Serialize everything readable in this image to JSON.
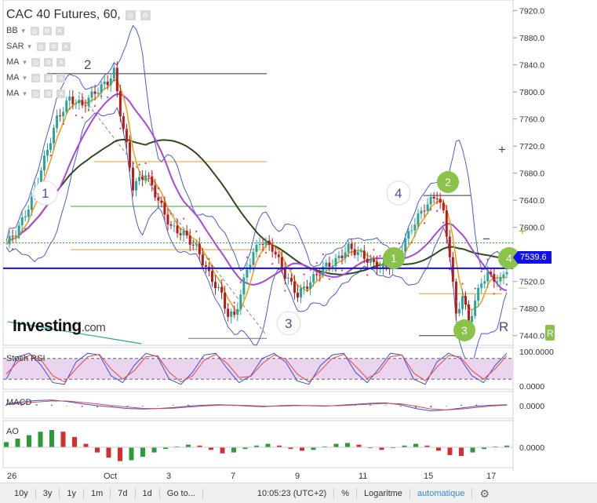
{
  "title": "CAC 40 Futures, 60,",
  "indicators": [
    "BB",
    "SAR",
    "MA",
    "MA",
    "MA"
  ],
  "logo": {
    "main": "Investing",
    "suffix": ".com"
  },
  "current_price": "7539.6",
  "colors": {
    "up": "#26a69a",
    "down": "#b71c1c",
    "sar": "#e53935",
    "bb": "#4a5bd4",
    "ma_fast": "#f39c12",
    "ma_mid": "#ab47d8",
    "ma_slow": "#2e4a1e",
    "price_line": "#1010ee",
    "wave_badge": "#8bc34a"
  },
  "icons": [
    "dropdown-arrow-icon",
    "eye-icon",
    "gear-icon",
    "close-icon",
    "plus-icon",
    "minus-icon",
    "settings-gear-icon"
  ],
  "toolbar": {
    "ranges": [
      "10y",
      "3y",
      "1y",
      "1m",
      "7d",
      "1d"
    ],
    "goto": "Go to...",
    "time": "10:05:23 (UTC+2)",
    "percent": "%",
    "log": "Logaritme",
    "auto": "automatique"
  },
  "chart_data": [
    {
      "type": "candlestick",
      "title": "CAC 40 Futures, 60,",
      "price_axis": {
        "range": [
          7420,
          7930
        ],
        "ticks": [
          "7920.0",
          "7880.0",
          "7840.0",
          "7800.0",
          "7760.0",
          "7720.0",
          "7680.0",
          "7640.0",
          "7600.0",
          "7560.0",
          "7520.0",
          "7480.0",
          "7440.0"
        ]
      },
      "x_ticks": [
        "26",
        "Oct",
        "3",
        "7",
        "9",
        "11",
        "15",
        "17"
      ],
      "close_path": [
        [
          0,
          7575
        ],
        [
          4,
          7600
        ],
        [
          8,
          7640
        ],
        [
          12,
          7700
        ],
        [
          16,
          7760
        ],
        [
          20,
          7790
        ],
        [
          24,
          7780
        ],
        [
          28,
          7800
        ],
        [
          32,
          7815
        ],
        [
          34,
          7830
        ],
        [
          36,
          7770
        ],
        [
          38,
          7720
        ],
        [
          40,
          7660
        ],
        [
          44,
          7680
        ],
        [
          48,
          7640
        ],
        [
          52,
          7600
        ],
        [
          56,
          7590
        ],
        [
          60,
          7570
        ],
        [
          64,
          7530
        ],
        [
          68,
          7500
        ],
        [
          70,
          7470
        ],
        [
          72,
          7470
        ],
        [
          74,
          7500
        ],
        [
          76,
          7540
        ],
        [
          80,
          7580
        ],
        [
          84,
          7570
        ],
        [
          88,
          7530
        ],
        [
          92,
          7500
        ],
        [
          96,
          7520
        ],
        [
          100,
          7540
        ],
        [
          104,
          7550
        ],
        [
          108,
          7570
        ],
        [
          112,
          7560
        ],
        [
          116,
          7545
        ],
        [
          120,
          7540
        ],
        [
          124,
          7560
        ],
        [
          128,
          7600
        ],
        [
          132,
          7630
        ],
        [
          136,
          7648
        ],
        [
          138,
          7620
        ],
        [
          140,
          7560
        ],
        [
          142,
          7470
        ],
        [
          144,
          7500
        ],
        [
          146,
          7460
        ],
        [
          148,
          7490
        ],
        [
          150,
          7520
        ],
        [
          152,
          7530
        ],
        [
          156,
          7520
        ],
        [
          158,
          7539.6
        ]
      ],
      "current_price": 7539.6,
      "wave_labels": [
        {
          "label": "1",
          "style": "circle"
        },
        {
          "label": "2",
          "style": "plain"
        },
        {
          "label": "3",
          "style": "circle"
        },
        {
          "label": "4",
          "style": "circle"
        },
        {
          "label": "2",
          "style": "badge"
        },
        {
          "label": "1",
          "style": "badge"
        },
        {
          "label": "3",
          "style": "badge"
        },
        {
          "label": "4",
          "style": "badge"
        },
        {
          "label": "R",
          "style": "plain"
        }
      ]
    },
    {
      "type": "line",
      "name": "Stoch RSI",
      "ticks": [
        "100.0000",
        "0.0000"
      ],
      "range": [
        0,
        100
      ],
      "k_values": [
        20,
        85,
        95,
        60,
        10,
        5,
        70,
        95,
        90,
        30,
        10,
        60,
        95,
        85,
        20,
        5,
        40,
        90,
        95,
        50,
        10,
        30,
        80,
        95,
        70,
        15,
        5,
        60,
        90,
        95,
        40,
        10,
        50,
        95,
        90,
        20,
        5,
        70,
        95,
        80,
        30,
        10,
        60,
        95
      ],
      "d_values": [
        35,
        70,
        90,
        75,
        30,
        12,
        50,
        85,
        92,
        50,
        20,
        45,
        85,
        88,
        40,
        12,
        30,
        75,
        92,
        65,
        25,
        28,
        65,
        90,
        78,
        35,
        12,
        45,
        80,
        92,
        58,
        22,
        40,
        85,
        90,
        38,
        15,
        55,
        88,
        85,
        45,
        20,
        50,
        88
      ]
    },
    {
      "type": "line",
      "name": "MACD",
      "ticks": [
        "0.0000"
      ],
      "range": [
        -1,
        1
      ],
      "macd_values": [
        0.2,
        0.4,
        0.55,
        0.6,
        0.45,
        0.2,
        0.0,
        -0.15,
        -0.3,
        -0.35,
        -0.3,
        -0.2,
        -0.05,
        0.05,
        0.1,
        0.05,
        -0.05,
        -0.1,
        0.0,
        0.05,
        0.0,
        -0.05,
        0.05,
        0.15,
        0.25,
        0.3,
        0.1,
        -0.3,
        -0.55,
        -0.45,
        -0.25,
        -0.05,
        0.05,
        0.1
      ],
      "signal_values": [
        0.1,
        0.25,
        0.4,
        0.5,
        0.5,
        0.35,
        0.18,
        0.0,
        -0.15,
        -0.28,
        -0.32,
        -0.27,
        -0.15,
        -0.03,
        0.05,
        0.07,
        0.02,
        -0.05,
        -0.05,
        0.0,
        0.02,
        -0.01,
        0.0,
        0.08,
        0.17,
        0.25,
        0.2,
        -0.05,
        -0.35,
        -0.45,
        -0.35,
        -0.18,
        -0.03,
        0.06
      ]
    },
    {
      "type": "bar",
      "name": "AO",
      "ticks": [
        "0.0000"
      ],
      "range": [
        -1,
        1
      ],
      "values": [
        0.3,
        0.5,
        0.7,
        0.9,
        1.0,
        0.9,
        0.6,
        0.2,
        -0.3,
        -0.6,
        -0.8,
        -0.75,
        -0.55,
        -0.3,
        -0.1,
        0.05,
        0.15,
        0.1,
        -0.15,
        -0.35,
        -0.3,
        -0.1,
        0.1,
        0.2,
        0.1,
        -0.1,
        -0.2,
        -0.15,
        0.05,
        0.2,
        0.25,
        0.15,
        -0.05,
        -0.15,
        -0.05,
        0.1,
        0.2,
        0.1,
        -0.2,
        -0.45,
        -0.5,
        -0.3,
        -0.1,
        0.05,
        0.1
      ]
    }
  ]
}
